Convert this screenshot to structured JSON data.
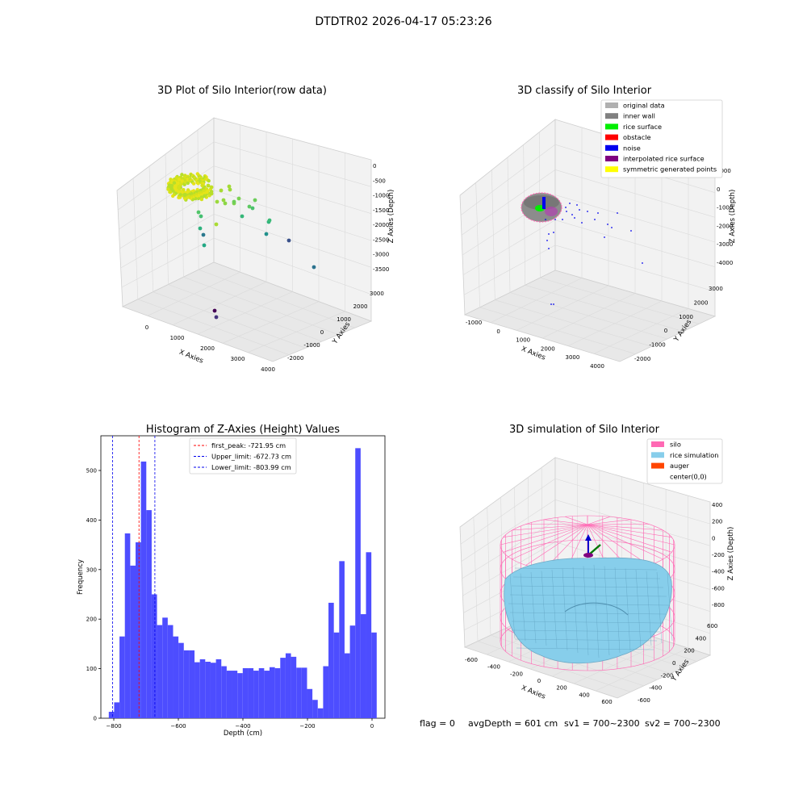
{
  "suptitle": "DTDTR02 2026-04-17 05:23:26",
  "footer": {
    "flag": "flag = 0",
    "avg_depth": "avgDepth = 601 cm",
    "sv1": "sv1 = 700~2300",
    "sv2": "sv2 = 700~2300"
  },
  "chart_data": [
    {
      "type": "scatter3d",
      "title": "3D Plot of Silo Interior(row data)",
      "xlabel": "X Axies",
      "ylabel": "Y Axies",
      "zlabel": "Z Axies (Depth)",
      "xticks": [
        "0",
        "1000",
        "2000",
        "3000",
        "4000"
      ],
      "yticks": [
        "-2000",
        "-1000",
        "0",
        "1000",
        "2000",
        "3000"
      ],
      "zticks": [
        "0",
        "-500",
        "-1000",
        "-1500",
        "-2000",
        "-2500",
        "-3000",
        "-3500"
      ],
      "colormap": "viridis"
    },
    {
      "type": "scatter3d",
      "title": "3D classify of Silo Interior",
      "xlabel": "X Axies",
      "ylabel": "Y Axies",
      "zlabel": "Z Axies (Depth)",
      "xticks": [
        "-1000",
        "0",
        "1000",
        "2000",
        "3000",
        "4000"
      ],
      "yticks": [
        "-2000",
        "-1000",
        "0",
        "1000",
        "2000",
        "3000"
      ],
      "zticks": [
        "1000",
        "0",
        "-1000",
        "-2000",
        "-3000",
        "-4000"
      ],
      "legend_placement": "upper-right",
      "legend": [
        {
          "label": "original data",
          "color": "#b0b0b0"
        },
        {
          "label": "inner wall",
          "color": "#808080"
        },
        {
          "label": "rice surface",
          "color": "#00ee00"
        },
        {
          "label": "obstacle",
          "color": "#ff0000"
        },
        {
          "label": "noise",
          "color": "#0000ee"
        },
        {
          "label": "interpolated rice surface",
          "color": "#800080"
        },
        {
          "label": "symmetric generated points",
          "color": "#ffff00"
        }
      ]
    },
    {
      "type": "bar",
      "title": "Histogram of Z-Axies (Height) Values",
      "xlabel": "Depth (cm)",
      "ylabel": "Frequency",
      "xlim": [
        -840,
        40
      ],
      "ylim": [
        0,
        570
      ],
      "xticks": [
        -800,
        -600,
        -400,
        -200,
        0
      ],
      "yticks": [
        0,
        100,
        200,
        300,
        400,
        500
      ],
      "bar_color": "#4d4dff",
      "bin_start": -815.5,
      "bin_width": 16.6,
      "values": [
        13,
        32,
        165,
        373,
        308,
        355,
        518,
        420,
        250,
        188,
        203,
        188,
        165,
        152,
        137,
        137,
        113,
        119,
        114,
        112,
        119,
        105,
        96,
        96,
        91,
        101,
        101,
        96,
        101,
        96,
        103,
        101,
        122,
        131,
        124,
        102,
        102,
        59,
        37,
        20,
        105,
        233,
        173,
        317,
        131,
        187,
        545,
        210,
        335,
        173
      ],
      "vlines": [
        {
          "label": "first_peak: -721.95 cm",
          "x": -721.95,
          "color": "#ff0000"
        },
        {
          "label": "Upper_limit: -672.73 cm",
          "x": -672.73,
          "color": "#0000ee"
        },
        {
          "label": "Lower_limit: -803.99 cm",
          "x": -803.99,
          "color": "#0000ee"
        }
      ],
      "legend_placement": "upper-center"
    },
    {
      "type": "surface3d",
      "title": "3D simulation of Silo Interior",
      "xlabel": "X Axies",
      "ylabel": "Y Axies",
      "zlabel": "Z Axies (Depth)",
      "xticks": [
        "-600",
        "-400",
        "-200",
        "0",
        "200",
        "400",
        "600"
      ],
      "yticks": [
        "-600",
        "-400",
        "-200",
        "0",
        "200",
        "400",
        "600"
      ],
      "zticks": [
        "400",
        "200",
        "0",
        "-200",
        "-400",
        "-600",
        "-800"
      ],
      "legend_placement": "upper-right",
      "legend": [
        {
          "label": "silo",
          "color": "#ff69b4"
        },
        {
          "label": "rice simulation",
          "color": "#87ceeb"
        },
        {
          "label": "auger",
          "color": "#ff4500"
        },
        {
          "label": "center(0,0)",
          "color": "#ffffff"
        }
      ]
    }
  ]
}
